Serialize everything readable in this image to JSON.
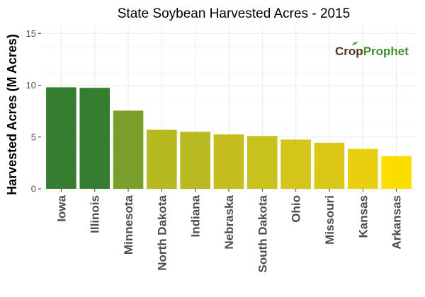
{
  "chart_data": {
    "type": "bar",
    "title": "State Soybean Harvested Acres - 2015",
    "ylabel": "Harvested Acres (M Acres)",
    "xlabel": "",
    "categories": [
      "Iowa",
      "Illinois",
      "Minnesota",
      "North Dakota",
      "Indiana",
      "Nebraska",
      "South Dakota",
      "Ohio",
      "Missouri",
      "Kansas",
      "Arkansas"
    ],
    "values": [
      9.8,
      9.75,
      7.55,
      5.7,
      5.5,
      5.25,
      5.1,
      4.75,
      4.45,
      3.85,
      3.15
    ],
    "ylim": [
      0,
      15.7
    ],
    "yticks": [
      0,
      5,
      10,
      15
    ],
    "grid": true,
    "colors": [
      "#357e2f",
      "#357e2f",
      "#7a9e2c",
      "#b7b921",
      "#b9ba21",
      "#c4be1e",
      "#c8c11e",
      "#d4c51a",
      "#dac716",
      "#e8d011",
      "#fddd00"
    ]
  },
  "logo": {
    "part1": "Cr",
    "part2": "p",
    "part3": "Prophet"
  }
}
